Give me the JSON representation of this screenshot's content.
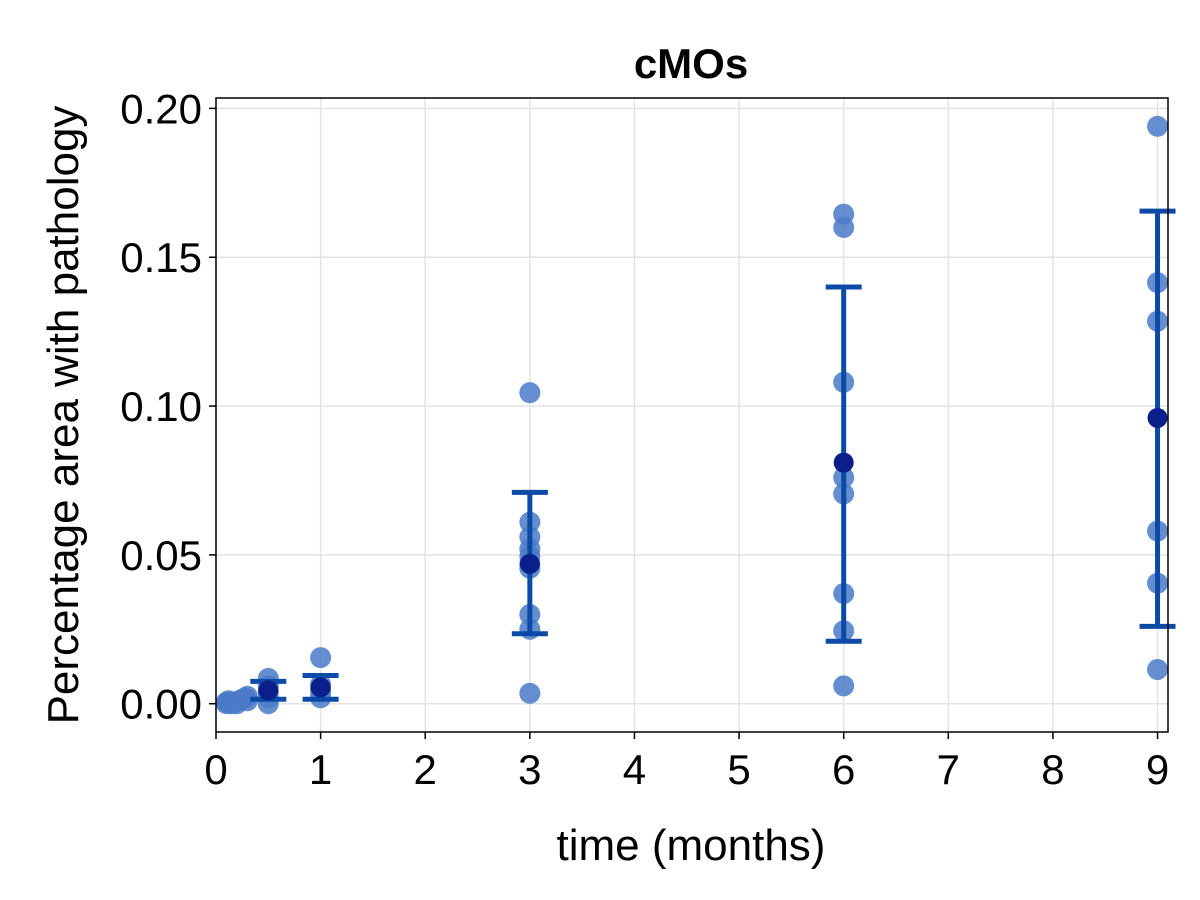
{
  "chart_data": {
    "type": "scatter",
    "title": "cMOs",
    "xlabel": "time (months)",
    "ylabel": "Percentage area with pathology",
    "xlim": [
      0,
      9.1
    ],
    "ylim": [
      -0.0095,
      0.2035
    ],
    "xticks": [
      0,
      1,
      2,
      3,
      4,
      5,
      6,
      7,
      8,
      9
    ],
    "xtick_labels": [
      "0",
      "1",
      "2",
      "3",
      "4",
      "5",
      "6",
      "7",
      "8",
      "9"
    ],
    "yticks": [
      0.0,
      0.05,
      0.1,
      0.15,
      0.2
    ],
    "ytick_labels": [
      "0.00",
      "0.05",
      "0.10",
      "0.15",
      "0.20"
    ],
    "grid": true,
    "colors": {
      "points": "#4a7ac8",
      "errorbar": "#0c4aa8",
      "mean": "#0a1f8a"
    },
    "points": [
      {
        "x": 0.1,
        "y": 0.0
      },
      {
        "x": 0.1,
        "y": 0.0005
      },
      {
        "x": 0.12,
        "y": 0.001
      },
      {
        "x": 0.15,
        "y": 0.0
      },
      {
        "x": 0.18,
        "y": 0.0005
      },
      {
        "x": 0.2,
        "y": 0.0
      },
      {
        "x": 0.22,
        "y": 0.001
      },
      {
        "x": 0.25,
        "y": 0.0015
      },
      {
        "x": 0.28,
        "y": 0.002
      },
      {
        "x": 0.3,
        "y": 0.0025
      },
      {
        "x": 0.3,
        "y": 0.001
      },
      {
        "x": 0.5,
        "y": 0.0085
      },
      {
        "x": 0.5,
        "y": 0.006
      },
      {
        "x": 0.5,
        "y": 0.004
      },
      {
        "x": 0.5,
        "y": 0.002
      },
      {
        "x": 0.5,
        "y": 0.0
      },
      {
        "x": 1.0,
        "y": 0.0155
      },
      {
        "x": 1.0,
        "y": 0.0065
      },
      {
        "x": 1.0,
        "y": 0.005
      },
      {
        "x": 1.0,
        "y": 0.004
      },
      {
        "x": 1.0,
        "y": 0.002
      },
      {
        "x": 3.0,
        "y": 0.1045
      },
      {
        "x": 3.0,
        "y": 0.061
      },
      {
        "x": 3.0,
        "y": 0.056
      },
      {
        "x": 3.0,
        "y": 0.052
      },
      {
        "x": 3.0,
        "y": 0.0495
      },
      {
        "x": 3.0,
        "y": 0.047
      },
      {
        "x": 3.0,
        "y": 0.0455
      },
      {
        "x": 3.0,
        "y": 0.03
      },
      {
        "x": 3.0,
        "y": 0.025
      },
      {
        "x": 3.0,
        "y": 0.0035
      },
      {
        "x": 6.0,
        "y": 0.1645
      },
      {
        "x": 6.0,
        "y": 0.16
      },
      {
        "x": 6.0,
        "y": 0.108
      },
      {
        "x": 6.0,
        "y": 0.076
      },
      {
        "x": 6.0,
        "y": 0.0705
      },
      {
        "x": 6.0,
        "y": 0.037
      },
      {
        "x": 6.0,
        "y": 0.0245
      },
      {
        "x": 6.0,
        "y": 0.006
      },
      {
        "x": 9.0,
        "y": 0.194
      },
      {
        "x": 9.0,
        "y": 0.1415
      },
      {
        "x": 9.0,
        "y": 0.1285
      },
      {
        "x": 9.0,
        "y": 0.058
      },
      {
        "x": 9.0,
        "y": 0.0405
      },
      {
        "x": 9.0,
        "y": 0.0115
      }
    ],
    "error_bars": [
      {
        "x": 0.5,
        "mean": 0.0045,
        "lower": 0.0015,
        "upper": 0.0075
      },
      {
        "x": 1.0,
        "mean": 0.0055,
        "lower": 0.0015,
        "upper": 0.0095
      },
      {
        "x": 3.0,
        "mean": 0.047,
        "lower": 0.0235,
        "upper": 0.071
      },
      {
        "x": 6.0,
        "mean": 0.081,
        "lower": 0.021,
        "upper": 0.14
      },
      {
        "x": 9.0,
        "mean": 0.096,
        "lower": 0.026,
        "upper": 0.1655
      }
    ]
  }
}
